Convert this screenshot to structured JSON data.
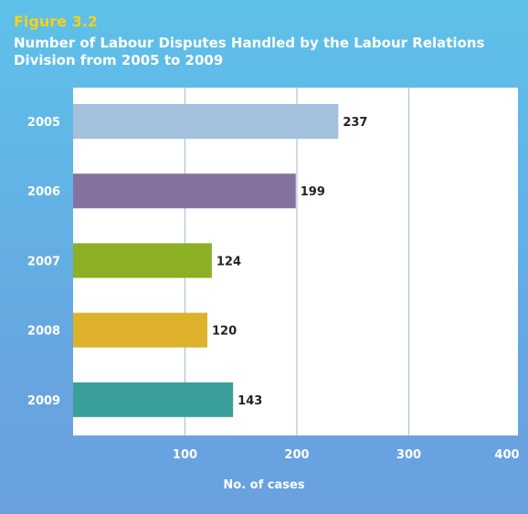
{
  "figure_label": "Figure 3.2",
  "chart_data": {
    "type": "bar",
    "orientation": "horizontal",
    "title": "Number of Labour Disputes Handled by the Labour Relations Division from 2005 to 2009",
    "xlabel": "No. of cases",
    "ylabel": "",
    "categories": [
      "2005",
      "2006",
      "2007",
      "2008",
      "2009"
    ],
    "values": [
      237,
      199,
      124,
      120,
      143
    ],
    "value_labels": [
      "237",
      "199",
      "124",
      "120",
      "143"
    ],
    "bar_colors": [
      "#a4c1de",
      "#8672a0",
      "#8bb024",
      "#ddb22a",
      "#3a9f9a"
    ],
    "xlim": [
      0,
      400
    ],
    "xticks": [
      100,
      200,
      300,
      400
    ],
    "xtick_labels": [
      "100",
      "200",
      "300",
      "400"
    ],
    "grid": true
  }
}
